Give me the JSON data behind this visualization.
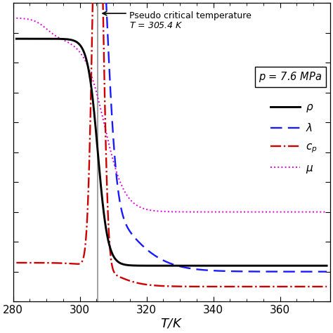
{
  "T_pseudo": 305.4,
  "T_min": 280,
  "T_max": 375,
  "xlabel": "$T$/K",
  "xticks": [
    280,
    300,
    320,
    340,
    360
  ],
  "background_color": "#ffffff",
  "line_rho_color": "#000000",
  "line_lambda_color": "#1a1aff",
  "line_cp_color": "#cc0000",
  "line_mu_color": "#dd00dd",
  "annotation_line1": "Pseudo critical temperature",
  "annotation_line2": "$T$ = 305.4 K",
  "pressure_text": "$p$ = 7.6 MPa",
  "legend_rho": "$\\rho$",
  "legend_lambda": "$\\lambda$",
  "legend_cp": "$c_p$",
  "legend_mu": "$\\mu$"
}
